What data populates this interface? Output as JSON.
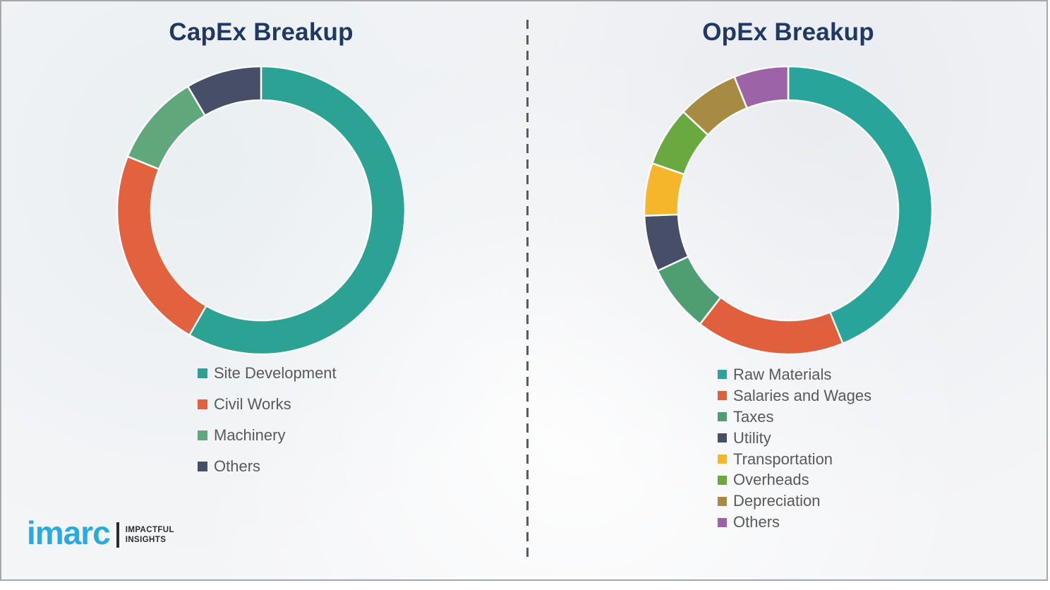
{
  "colors": {
    "title": "#1F3864",
    "legend_text": "#595959",
    "divider": "#5A5A5A",
    "frame_border": "#A8A8A8",
    "background": "#F4F5F7",
    "segment_gap_stroke": "#FAFBFB",
    "logo_blue": "#29ABE2",
    "logo_dark": "#2B2B2B"
  },
  "divider": {
    "style": "vertical-dashed"
  },
  "logo": {
    "wordmark": "imarc",
    "tagline_line1": "IMPACTFUL",
    "tagline_line2": "INSIGHTS"
  },
  "chart_data": [
    {
      "type": "pie",
      "variant": "donut",
      "title": "CapEx Breakup",
      "legend_position": "below-left",
      "start_angle_deg": 0,
      "direction": "clockwise",
      "series": [
        {
          "name": "Site Development",
          "value": 58.3,
          "color": "#2BA294"
        },
        {
          "name": "Civil Works",
          "value": 22.8,
          "color": "#E2613E"
        },
        {
          "name": "Machinery",
          "value": 10.4,
          "color": "#61A77C"
        },
        {
          "name": "Others",
          "value": 8.5,
          "color": "#474E68"
        }
      ]
    },
    {
      "type": "pie",
      "variant": "donut",
      "title": "OpEx Breakup",
      "legend_position": "below-left",
      "start_angle_deg": 0,
      "direction": "clockwise",
      "series": [
        {
          "name": "Raw Materials",
          "value": 43.8,
          "color": "#29A49B"
        },
        {
          "name": "Salaries and Wages",
          "value": 16.7,
          "color": "#E0603D"
        },
        {
          "name": "Taxes",
          "value": 7.6,
          "color": "#4F9E72"
        },
        {
          "name": "Utility",
          "value": 6.3,
          "color": "#474E68"
        },
        {
          "name": "Transportation",
          "value": 5.9,
          "color": "#F6B62C"
        },
        {
          "name": "Overheads",
          "value": 6.7,
          "color": "#69A93F"
        },
        {
          "name": "Depreciation",
          "value": 6.9,
          "color": "#A78B42"
        },
        {
          "name": "Others",
          "value": 6.1,
          "color": "#9C64A6"
        }
      ]
    }
  ]
}
